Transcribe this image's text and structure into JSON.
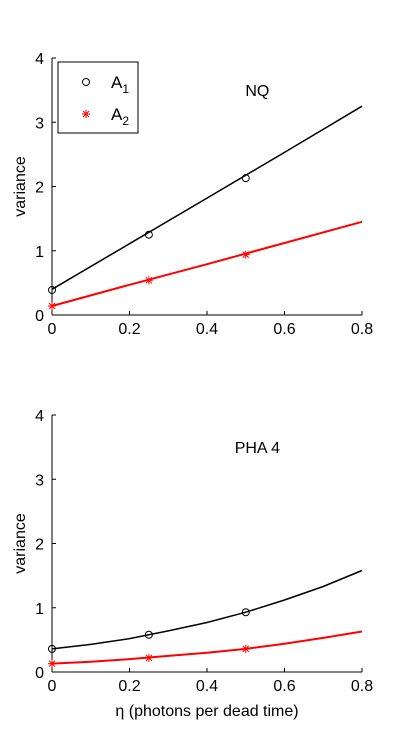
{
  "chart_data": [
    {
      "type": "line",
      "annotation": "NQ",
      "ylabel": "variance",
      "xlabel": "",
      "xlim": [
        0,
        0.8
      ],
      "ylim": [
        0,
        4
      ],
      "xticks": [
        "0",
        "0.2",
        "0.4",
        "0.6",
        "0.8"
      ],
      "yticks": [
        "0",
        "1",
        "2",
        "3",
        "4"
      ],
      "legend": {
        "placement": "top-left",
        "entries": [
          {
            "base": "A",
            "sub": "1",
            "marker": "circle",
            "color": "#000000"
          },
          {
            "base": "A",
            "sub": "2",
            "marker": "star",
            "color": "#ff0000"
          }
        ]
      },
      "series": [
        {
          "name": "A1",
          "color": "#000000",
          "marker": "circle",
          "points": [
            [
              0,
              0.39
            ],
            [
              0.25,
              1.25
            ],
            [
              0.5,
              2.13
            ]
          ],
          "fit": [
            [
              0,
              0.4
            ],
            [
              0.2,
              1.11
            ],
            [
              0.4,
              1.82
            ],
            [
              0.6,
              2.53
            ],
            [
              0.8,
              3.25
            ]
          ]
        },
        {
          "name": "A2",
          "color": "#ff0000",
          "marker": "star",
          "points": [
            [
              0,
              0.14
            ],
            [
              0.25,
              0.54
            ],
            [
              0.5,
              0.94
            ]
          ],
          "fit": [
            [
              0,
              0.14
            ],
            [
              0.2,
              0.47
            ],
            [
              0.4,
              0.79
            ],
            [
              0.6,
              1.12
            ],
            [
              0.8,
              1.45
            ]
          ]
        }
      ]
    },
    {
      "type": "line",
      "annotation": "PHA 4",
      "ylabel": "variance",
      "xlabel": "η (photons per dead time)",
      "xlim": [
        0,
        0.8
      ],
      "ylim": [
        0,
        4
      ],
      "xticks": [
        "0",
        "0.2",
        "0.4",
        "0.6",
        "0.8"
      ],
      "yticks": [
        "0",
        "1",
        "2",
        "3",
        "4"
      ],
      "series": [
        {
          "name": "A1",
          "color": "#000000",
          "marker": "circle",
          "points": [
            [
              0,
              0.36
            ],
            [
              0.25,
              0.58
            ],
            [
              0.5,
              0.93
            ]
          ],
          "fit": [
            [
              0,
              0.36
            ],
            [
              0.1,
              0.43
            ],
            [
              0.2,
              0.52
            ],
            [
              0.3,
              0.64
            ],
            [
              0.4,
              0.77
            ],
            [
              0.5,
              0.93
            ],
            [
              0.6,
              1.12
            ],
            [
              0.7,
              1.33
            ],
            [
              0.8,
              1.58
            ]
          ]
        },
        {
          "name": "A2",
          "color": "#ff0000",
          "marker": "star",
          "points": [
            [
              0,
              0.13
            ],
            [
              0.25,
              0.22
            ],
            [
              0.5,
              0.36
            ]
          ],
          "fit": [
            [
              0,
              0.13
            ],
            [
              0.1,
              0.16
            ],
            [
              0.2,
              0.2
            ],
            [
              0.3,
              0.25
            ],
            [
              0.4,
              0.3
            ],
            [
              0.5,
              0.36
            ],
            [
              0.6,
              0.44
            ],
            [
              0.7,
              0.53
            ],
            [
              0.8,
              0.63
            ]
          ]
        }
      ]
    }
  ]
}
